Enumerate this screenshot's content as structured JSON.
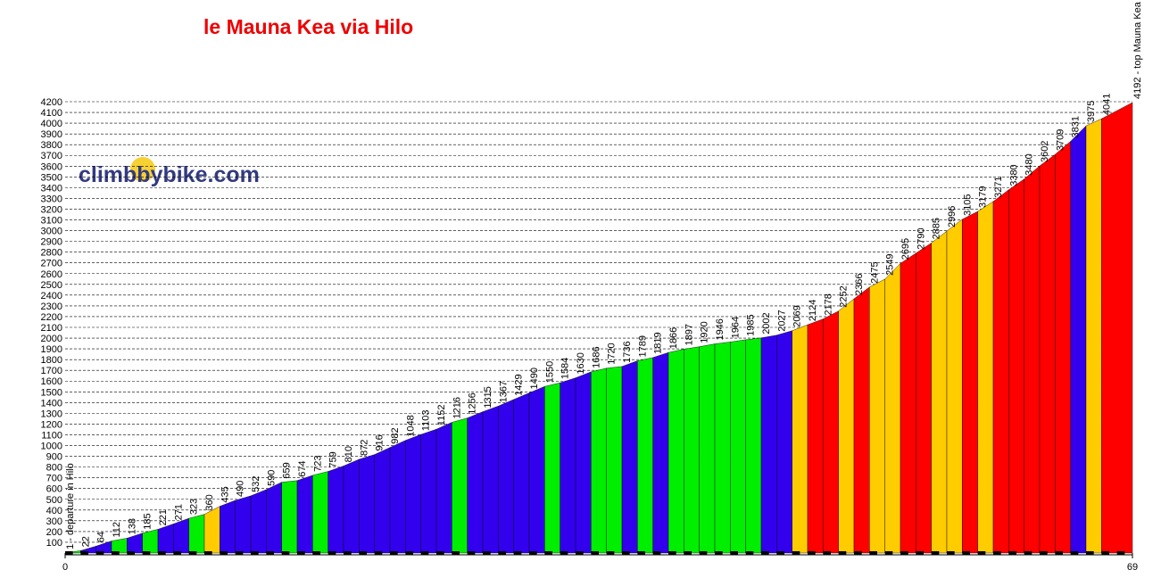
{
  "chart_data": {
    "type": "profile",
    "title": "le Mauna Kea via  Hilo",
    "watermark": "climbbybike.com",
    "x": [
      0,
      1,
      2,
      3,
      4,
      5,
      6,
      7,
      8,
      9,
      10,
      11,
      12,
      13,
      14,
      15,
      16,
      17,
      18,
      19,
      20,
      21,
      22,
      23,
      24,
      25,
      26,
      27,
      28,
      29,
      30,
      31,
      32,
      33,
      34,
      35,
      36,
      37,
      38,
      39,
      40,
      41,
      42,
      43,
      44,
      45,
      46,
      47,
      48,
      49,
      50,
      51,
      52,
      53,
      54,
      55,
      56,
      57,
      58,
      59,
      60,
      61,
      62,
      63,
      64,
      65,
      66,
      67,
      69
    ],
    "values": [
      1,
      22,
      64,
      112,
      138,
      185,
      221,
      271,
      323,
      360,
      435,
      490,
      532,
      590,
      659,
      674,
      723,
      759,
      810,
      872,
      916,
      982,
      1048,
      1103,
      1152,
      1216,
      1256,
      1315,
      1367,
      1429,
      1490,
      1550,
      1584,
      1630,
      1686,
      1720,
      1736,
      1789,
      1819,
      1866,
      1897,
      1920,
      1946,
      1964,
      1985,
      2002,
      2027,
      2069,
      2124,
      2178,
      2252,
      2366,
      2475,
      2549,
      2695,
      2790,
      2885,
      2996,
      3105,
      3179,
      3271,
      3380,
      3480,
      3602,
      3709,
      3831,
      3975,
      4041,
      4192
    ],
    "value_labels": [
      "1 - departure in Hilo",
      null,
      null,
      null,
      null,
      null,
      null,
      null,
      null,
      null,
      null,
      null,
      null,
      null,
      null,
      null,
      null,
      null,
      null,
      null,
      null,
      null,
      null,
      null,
      null,
      null,
      null,
      null,
      null,
      null,
      null,
      null,
      null,
      null,
      null,
      null,
      null,
      null,
      null,
      null,
      null,
      null,
      null,
      null,
      null,
      null,
      null,
      null,
      null,
      null,
      null,
      null,
      null,
      null,
      null,
      null,
      null,
      null,
      null,
      null,
      null,
      null,
      null,
      null,
      null,
      null,
      null,
      null,
      "4192 - top Mauna Kea"
    ],
    "segment_colors": [
      "#00ee00",
      "#3300ee",
      "#3300ee",
      "#00ee00",
      "#3300ee",
      "#00ee00",
      "#3300ee",
      "#3300ee",
      "#00ee00",
      "#ffcc00",
      "#3300ee",
      "#3300ee",
      "#3300ee",
      "#3300ee",
      "#00ee00",
      "#3300ee",
      "#00ee00",
      "#3300ee",
      "#3300ee",
      "#3300ee",
      "#3300ee",
      "#3300ee",
      "#3300ee",
      "#3300ee",
      "#3300ee",
      "#00ee00",
      "#3300ee",
      "#3300ee",
      "#3300ee",
      "#3300ee",
      "#3300ee",
      "#00ee00",
      "#3300ee",
      "#3300ee",
      "#00ee00",
      "#00ee00",
      "#3300ee",
      "#00ee00",
      "#3300ee",
      "#00ee00",
      "#00ee00",
      "#00ee00",
      "#00ee00",
      "#00ee00",
      "#00ee00",
      "#3300ee",
      "#3300ee",
      "#ffcc00",
      "#ff0000",
      "#ff0000",
      "#ffcc00",
      "#ff0000",
      "#ffcc00",
      "#ffcc00",
      "#ff0000",
      "#ff0000",
      "#ffcc00",
      "#ffcc00",
      "#ff0000",
      "#ffcc00",
      "#ff0000",
      "#ff0000",
      "#ff0000",
      "#ff0000",
      "#ff0000",
      "#3300ee",
      "#ffcc00",
      "#ff0000"
    ],
    "xlim": [
      0,
      69
    ],
    "xticks": [
      0,
      69
    ],
    "ylim": [
      0,
      4200
    ],
    "yticks": [
      100,
      200,
      300,
      400,
      500,
      600,
      700,
      800,
      900,
      1000,
      1100,
      1200,
      1300,
      1400,
      1500,
      1600,
      1700,
      1800,
      1900,
      2000,
      2100,
      2200,
      2300,
      2400,
      2500,
      2600,
      2700,
      2800,
      2900,
      3000,
      3100,
      3200,
      3300,
      3400,
      3500,
      3600,
      3700,
      3800,
      3900,
      4000,
      4100,
      4200
    ],
    "grid": true
  }
}
